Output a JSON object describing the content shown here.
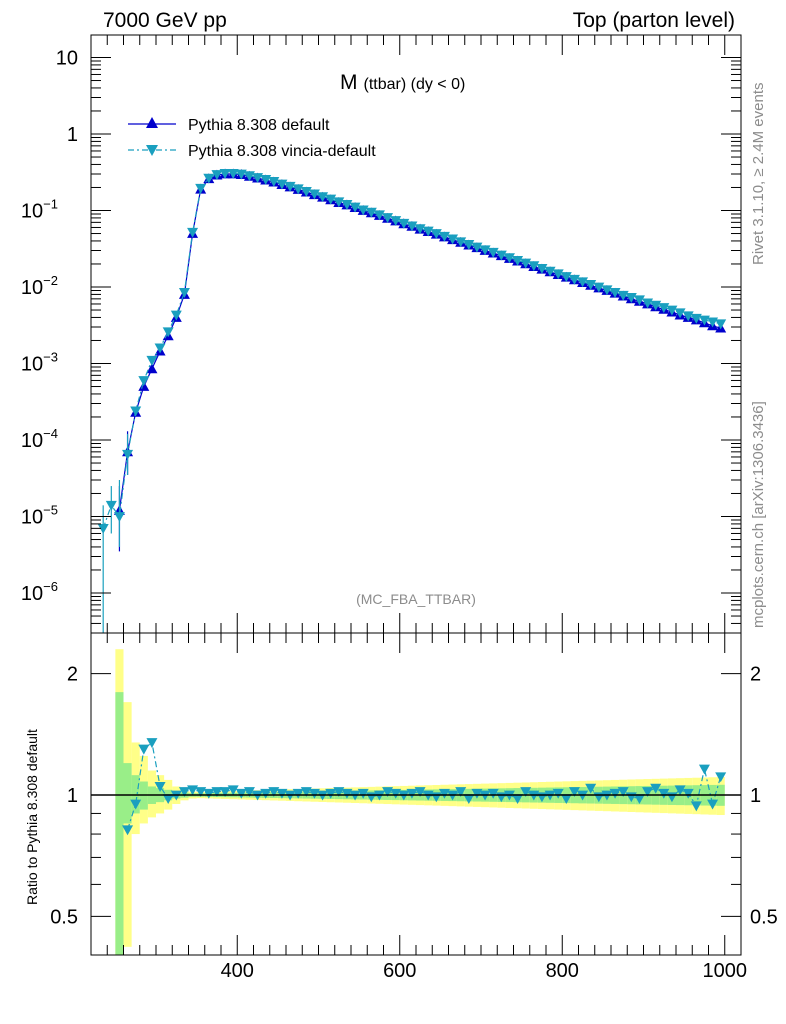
{
  "header": {
    "left": "7000 GeV pp",
    "right": "Top (parton level)"
  },
  "side": {
    "rivet": "Rivet 3.1.10, ≥ 2.4M events",
    "mcplots": "mcplots.cern.ch [arXiv:1306.3436]"
  },
  "main": {
    "observable": "M",
    "observable_sub": "(ttbar) (dy < 0)",
    "watermark": "(MC_FBA_TTBAR)"
  },
  "ratio": {
    "ylabel": "Ratio to Pythia 8.308 default"
  },
  "colors": {
    "default": "#0000cc",
    "vincia": "#1a9fbf",
    "band_inner": "#99ee88",
    "band_outer": "#ffff88"
  },
  "chart_data": [
    {
      "type": "line",
      "title": "M (ttbar) (dy < 0)",
      "xlabel": "",
      "ylabel": "",
      "yscale": "log",
      "xlim": [
        220,
        1020
      ],
      "ylim": [
        3e-07,
        20
      ],
      "y_tick_labels": [
        "10^-6",
        "10^-5",
        "10^-4",
        "10^-3",
        "10^-2",
        "10^-1",
        "1",
        "10"
      ],
      "legend": [
        "Pythia 8.308 default",
        "Pythia 8.308 vincia-default"
      ],
      "series": [
        {
          "name": "Pythia 8.308 default",
          "x": [
            255,
            265,
            275,
            285,
            295,
            305,
            315,
            325,
            335,
            345,
            355,
            365,
            375,
            385,
            395,
            405,
            415,
            425,
            435,
            445,
            455,
            465,
            475,
            485,
            495,
            505,
            515,
            525,
            535,
            545,
            555,
            565,
            575,
            585,
            595,
            605,
            615,
            625,
            635,
            645,
            655,
            665,
            675,
            685,
            695,
            705,
            715,
            725,
            735,
            745,
            755,
            765,
            775,
            785,
            795,
            805,
            815,
            825,
            835,
            845,
            855,
            865,
            875,
            885,
            895,
            905,
            915,
            925,
            935,
            945,
            955,
            965,
            975,
            985,
            995
          ],
          "y": [
            1.2e-05,
            7e-05,
            0.00023,
            0.0005,
            0.00085,
            0.00145,
            0.0023,
            0.004,
            0.008,
            0.05,
            0.19,
            0.26,
            0.29,
            0.3,
            0.3,
            0.295,
            0.28,
            0.265,
            0.25,
            0.235,
            0.218,
            0.203,
            0.188,
            0.174,
            0.161,
            0.149,
            0.138,
            0.127,
            0.118,
            0.109,
            0.1,
            0.093,
            0.086,
            0.079,
            0.073,
            0.067,
            0.062,
            0.057,
            0.053,
            0.049,
            0.045,
            0.0415,
            0.0383,
            0.0353,
            0.0326,
            0.03,
            0.0277,
            0.0256,
            0.0236,
            0.0218,
            0.0201,
            0.0185,
            0.0171,
            0.0158,
            0.0145,
            0.0134,
            0.0124,
            0.0114,
            0.0105,
            0.0097,
            0.009,
            0.0083,
            0.0076,
            0.007,
            0.0065,
            0.006,
            0.0055,
            0.0051,
            0.0047,
            0.0043,
            0.004,
            0.0037,
            0.0034,
            0.0031,
            0.0029
          ]
        },
        {
          "name": "Pythia 8.308 vincia-default",
          "x": [
            235,
            245,
            255,
            265,
            275,
            285,
            295,
            305,
            315,
            325,
            335,
            345,
            355,
            365,
            375,
            385,
            395,
            405,
            415,
            425,
            435,
            445,
            455,
            465,
            475,
            485,
            495,
            505,
            515,
            525,
            535,
            545,
            555,
            565,
            575,
            585,
            595,
            605,
            615,
            625,
            635,
            645,
            655,
            665,
            675,
            685,
            695,
            705,
            715,
            725,
            735,
            745,
            755,
            765,
            775,
            785,
            795,
            805,
            815,
            825,
            835,
            845,
            855,
            865,
            875,
            885,
            895,
            905,
            915,
            925,
            935,
            945,
            955,
            965,
            975,
            985,
            995
          ],
          "y": [
            7e-06,
            1.4e-05,
            1e-05,
            6.5e-05,
            0.00024,
            0.0006,
            0.0011,
            0.0016,
            0.0026,
            0.0043,
            0.0085,
            0.052,
            0.195,
            0.265,
            0.295,
            0.305,
            0.305,
            0.3,
            0.285,
            0.27,
            0.255,
            0.24,
            0.222,
            0.207,
            0.192,
            0.178,
            0.165,
            0.152,
            0.141,
            0.13,
            0.12,
            0.111,
            0.102,
            0.095,
            0.088,
            0.081,
            0.074,
            0.068,
            0.063,
            0.058,
            0.054,
            0.05,
            0.046,
            0.0425,
            0.039,
            0.036,
            0.0333,
            0.0307,
            0.0284,
            0.0262,
            0.0242,
            0.0223,
            0.0206,
            0.019,
            0.0175,
            0.0161,
            0.0149,
            0.0137,
            0.0126,
            0.0117,
            0.0108,
            0.01,
            0.0092,
            0.0085,
            0.0078,
            0.0073,
            0.0068,
            0.0062,
            0.0058,
            0.0054,
            0.005,
            0.0046,
            0.0042,
            0.0039,
            0.0037,
            0.0035,
            0.0033
          ]
        }
      ]
    },
    {
      "type": "line",
      "title": "",
      "xlabel": "",
      "ylabel": "Ratio to Pythia 8.308 default",
      "yscale": "log",
      "xlim": [
        220,
        1020
      ],
      "ylim": [
        0.4,
        2.4
      ],
      "x_tick_labels": [
        "400",
        "600",
        "800",
        "1000"
      ],
      "y_tick_labels": [
        "0.5",
        "1",
        "2"
      ],
      "series": [
        {
          "name": "Pythia 8.308 vincia-default",
          "x": [
            265,
            275,
            285,
            295,
            305,
            315,
            325,
            335,
            345,
            355,
            365,
            375,
            385,
            395,
            405,
            415,
            425,
            435,
            445,
            455,
            465,
            475,
            485,
            495,
            505,
            515,
            525,
            535,
            545,
            555,
            565,
            575,
            585,
            595,
            605,
            615,
            625,
            635,
            645,
            655,
            665,
            675,
            685,
            695,
            705,
            715,
            725,
            735,
            745,
            755,
            765,
            775,
            785,
            795,
            805,
            815,
            825,
            835,
            845,
            855,
            865,
            875,
            885,
            895,
            905,
            915,
            925,
            935,
            945,
            955,
            965,
            975,
            985,
            995
          ],
          "y": [
            0.82,
            0.95,
            1.3,
            1.35,
            1.05,
            0.98,
            1.0,
            1.02,
            1.03,
            1.02,
            1.01,
            1.02,
            1.02,
            1.03,
            1.01,
            1.02,
            1.0,
            1.01,
            1.02,
            1.01,
            1.0,
            1.01,
            1.02,
            1.01,
            1.0,
            1.01,
            1.02,
            1.01,
            1.0,
            1.01,
            0.99,
            1.0,
            1.02,
            1.01,
            1.0,
            1.01,
            1.02,
            1.0,
            0.99,
            1.01,
            1.0,
            1.02,
            0.98,
            1.01,
            1.0,
            1.01,
            0.99,
            1.0,
            0.98,
            1.02,
            1.0,
            0.99,
            1.0,
            1.01,
            0.98,
            1.02,
            1.0,
            1.04,
            0.99,
            1.0,
            1.01,
            1.02,
            0.99,
            0.98,
            1.02,
            1.04,
            1.01,
            0.99,
            1.03,
            1.01,
            0.94,
            1.16,
            0.95,
            1.11
          ]
        }
      ]
    }
  ]
}
